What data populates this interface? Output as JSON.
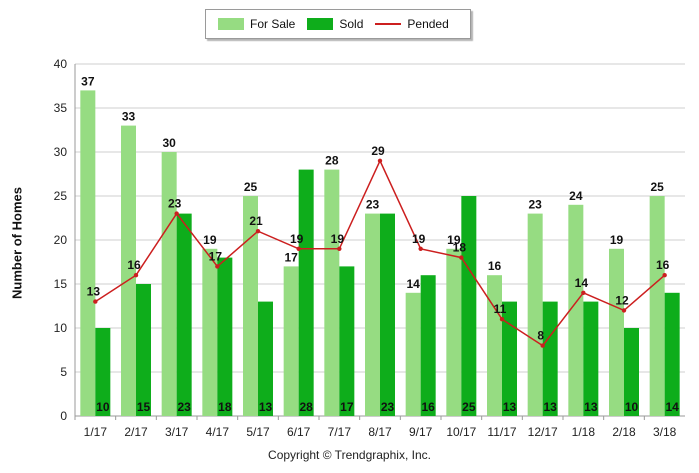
{
  "chart_data": {
    "type": "bar",
    "categories": [
      "1/17",
      "2/17",
      "3/17",
      "4/17",
      "5/17",
      "6/17",
      "7/17",
      "8/17",
      "9/17",
      "10/17",
      "11/17",
      "12/17",
      "1/18",
      "2/18",
      "3/18"
    ],
    "series": [
      {
        "name": "For Sale",
        "kind": "bar",
        "color": "#96dc82",
        "values": [
          37,
          33,
          30,
          19,
          25,
          17,
          28,
          23,
          14,
          19,
          16,
          23,
          24,
          19,
          25
        ]
      },
      {
        "name": "Sold",
        "kind": "bar",
        "color": "#0ead1b",
        "values": [
          10,
          15,
          23,
          18,
          13,
          28,
          17,
          23,
          16,
          25,
          13,
          13,
          13,
          10,
          14
        ]
      },
      {
        "name": "Pended",
        "kind": "line",
        "color": "#cc1f1f",
        "values": [
          13,
          16,
          23,
          17,
          21,
          19,
          19,
          29,
          19,
          18,
          11,
          8,
          14,
          12,
          16
        ]
      }
    ],
    "ylabel": "Number of Homes",
    "ylim": [
      0,
      40
    ],
    "yticks": [
      0,
      5,
      10,
      15,
      20,
      25,
      30,
      35,
      40
    ],
    "grid": true,
    "legend": "top-center"
  },
  "footer": {
    "copyright": "Copyright © Trendgraphix, Inc."
  }
}
